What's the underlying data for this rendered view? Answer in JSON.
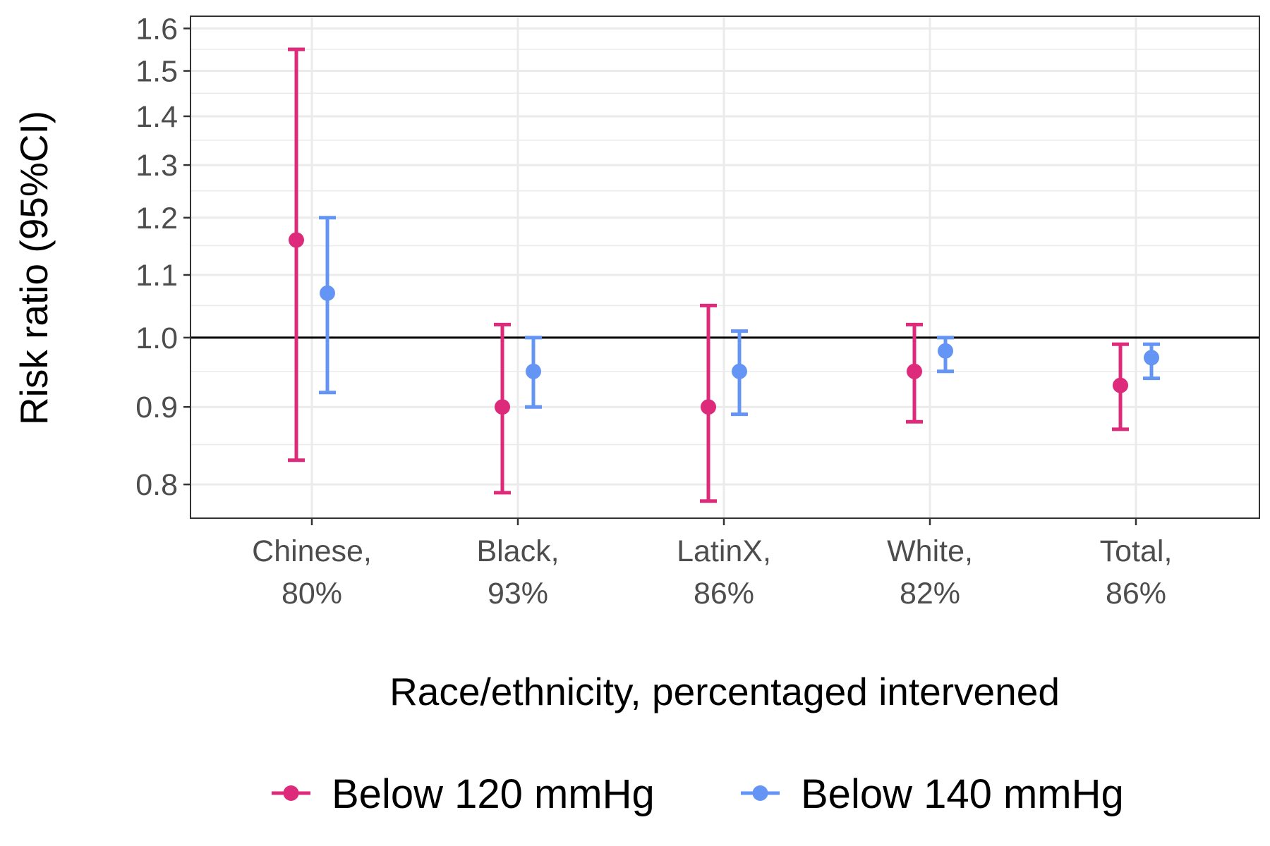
{
  "colors": {
    "below_120": "#dd2a7b",
    "below_140": "#6495f5",
    "reference_line": "#000000",
    "panel_border": "#333333",
    "grid": "#ebebeb"
  },
  "chart_data": {
    "type": "scatter",
    "subtype": "point-range with error bars",
    "xlabel": "Race/ethnicity, percentaged intervened",
    "ylabel": "Risk ratio (95%CI)",
    "y_scale": "log",
    "ylim": [
      0.76,
      1.63
    ],
    "y_ticks": [
      0.8,
      0.9,
      1.0,
      1.1,
      1.2,
      1.3,
      1.4,
      1.5,
      1.6
    ],
    "y_tick_labels": [
      "0.8",
      "0.9",
      "1.0",
      "1.1",
      "1.2",
      "1.3",
      "1.4",
      "1.5",
      "1.6"
    ],
    "reference_line": 1.0,
    "grid": true,
    "legend_position": "bottom",
    "categories": [
      {
        "line1": "Chinese,",
        "line2": "80%"
      },
      {
        "line1": "Black,",
        "line2": "93%"
      },
      {
        "line1": "LatinX,",
        "line2": "86%"
      },
      {
        "line1": "White,",
        "line2": "82%"
      },
      {
        "line1": "Total,",
        "line2": "86%"
      }
    ],
    "series": [
      {
        "name": "Below 120 mmHg",
        "color_key": "below_120",
        "estimate": [
          1.16,
          0.9,
          0.9,
          0.95,
          0.93
        ],
        "lower": [
          0.83,
          0.79,
          0.78,
          0.88,
          0.87
        ],
        "upper": [
          1.55,
          1.02,
          1.05,
          1.02,
          0.99
        ]
      },
      {
        "name": "Below 140 mmHg",
        "color_key": "below_140",
        "estimate": [
          1.07,
          0.95,
          0.95,
          0.98,
          0.97
        ],
        "lower": [
          0.92,
          0.9,
          0.89,
          0.95,
          0.94
        ],
        "upper": [
          1.2,
          1.0,
          1.01,
          1.0,
          0.99
        ]
      }
    ]
  }
}
